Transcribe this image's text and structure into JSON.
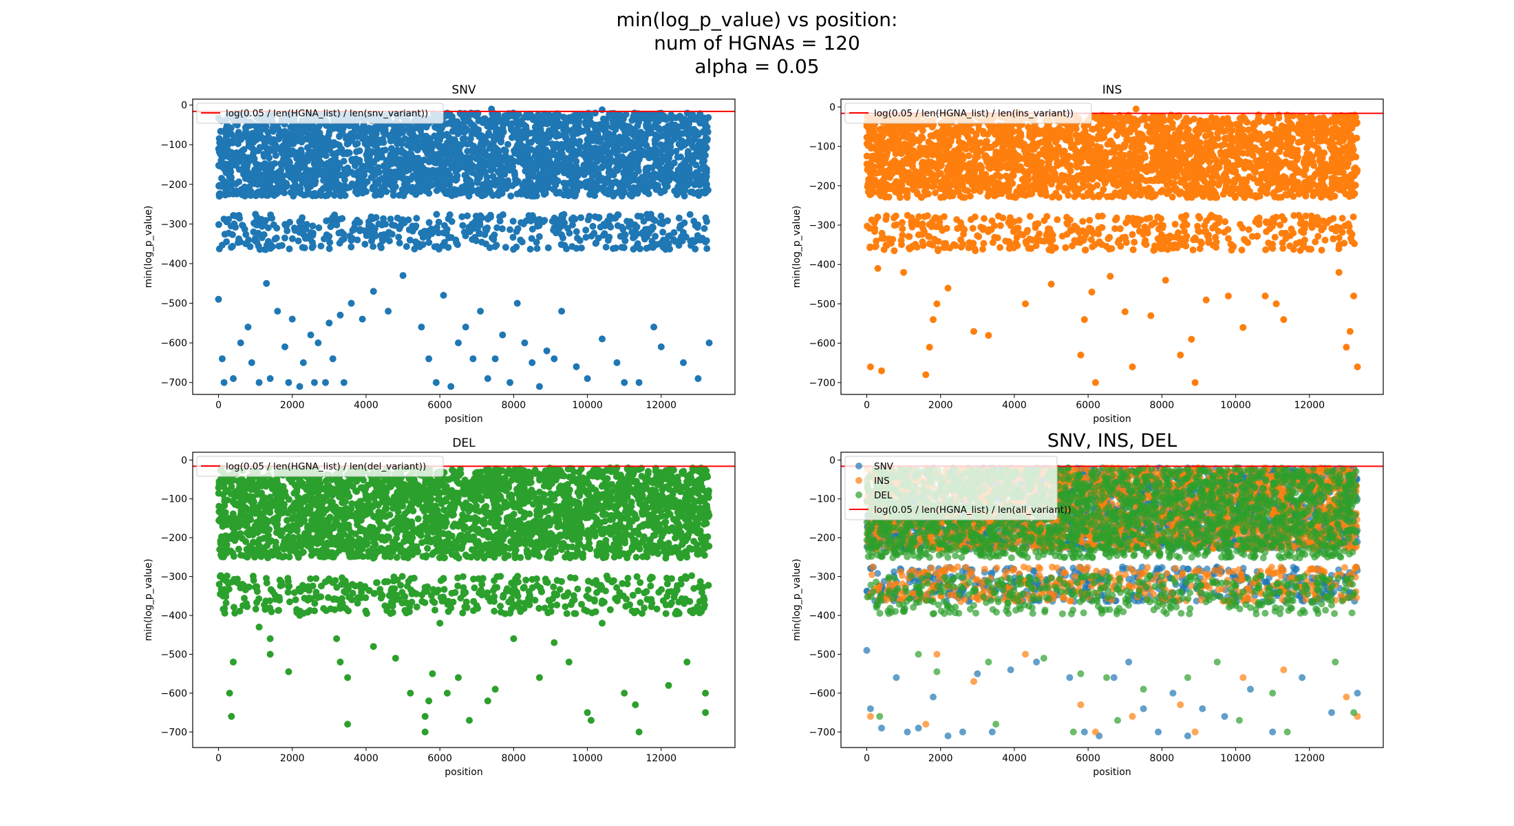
{
  "suptitle": [
    "min(log_p_value) vs position:",
    "num of HGNAs = 120",
    "alpha = 0.05"
  ],
  "colors": {
    "snv": "#1f77b4",
    "ins": "#ff7f0e",
    "del": "#2ca02c",
    "threshold": "#ff0000"
  },
  "chart_data": [
    {
      "type": "scatter",
      "title": "SNV",
      "xlabel": "position",
      "ylabel": "min(log_p_value)",
      "xlim": [
        -700,
        14000
      ],
      "ylim": [
        -730,
        15
      ],
      "xticks": [
        0,
        2000,
        4000,
        6000,
        8000,
        10000,
        12000
      ],
      "yticks": [
        0,
        -100,
        -200,
        -300,
        -400,
        -500,
        -600,
        -700
      ],
      "xticklabels": [
        "0",
        "2000",
        "4000",
        "6000",
        "8000",
        "10000",
        "12000"
      ],
      "yticklabels": [
        "0",
        "−100",
        "−200",
        "−300",
        "−400",
        "−500",
        "−600",
        "−700"
      ],
      "threshold": {
        "label": "log(0.05 / len(HGNA_list) / len(snv_variant))",
        "y": -16
      },
      "legend": "upper left",
      "series": [
        {
          "name": "",
          "color_key": "snv",
          "x_range": [
            0,
            13300
          ],
          "band": [
            -20,
            -300
          ],
          "outliers": [
            [
              0,
              -490
            ],
            [
              100,
              -640
            ],
            [
              150,
              -700
            ],
            [
              400,
              -690
            ],
            [
              600,
              -600
            ],
            [
              800,
              -560
            ],
            [
              900,
              -650
            ],
            [
              1100,
              -700
            ],
            [
              1300,
              -450
            ],
            [
              1400,
              -690
            ],
            [
              1600,
              -520
            ],
            [
              1800,
              -610
            ],
            [
              1900,
              -700
            ],
            [
              2000,
              -540
            ],
            [
              2200,
              -710
            ],
            [
              2300,
              -650
            ],
            [
              2500,
              -580
            ],
            [
              2600,
              -700
            ],
            [
              2700,
              -600
            ],
            [
              2900,
              -700
            ],
            [
              3000,
              -550
            ],
            [
              3100,
              -640
            ],
            [
              3300,
              -530
            ],
            [
              3400,
              -700
            ],
            [
              3600,
              -500
            ],
            [
              3900,
              -540
            ],
            [
              4200,
              -470
            ],
            [
              4600,
              -520
            ],
            [
              5000,
              -430
            ],
            [
              5500,
              -560
            ],
            [
              5700,
              -640
            ],
            [
              5900,
              -700
            ],
            [
              6100,
              -480
            ],
            [
              6300,
              -710
            ],
            [
              6500,
              -600
            ],
            [
              6700,
              -560
            ],
            [
              6900,
              -640
            ],
            [
              7100,
              -520
            ],
            [
              7300,
              -690
            ],
            [
              7500,
              -640
            ],
            [
              7700,
              -580
            ],
            [
              7900,
              -700
            ],
            [
              8100,
              -500
            ],
            [
              8300,
              -600
            ],
            [
              8500,
              -650
            ],
            [
              8700,
              -710
            ],
            [
              8900,
              -620
            ],
            [
              9100,
              -640
            ],
            [
              9300,
              -520
            ],
            [
              9700,
              -660
            ],
            [
              10000,
              -690
            ],
            [
              10400,
              -590
            ],
            [
              10800,
              -650
            ],
            [
              11000,
              -700
            ],
            [
              11400,
              -700
            ],
            [
              11800,
              -560
            ],
            [
              12000,
              -610
            ],
            [
              12600,
              -650
            ],
            [
              13000,
              -690
            ],
            [
              13300,
              -600
            ],
            [
              7400,
              -10
            ],
            [
              10400,
              -12
            ]
          ]
        }
      ]
    },
    {
      "type": "scatter",
      "title": "INS",
      "xlabel": "position",
      "ylabel": "min(log_p_value)",
      "xlim": [
        -700,
        14000
      ],
      "ylim": [
        -730,
        20
      ],
      "xticks": [
        0,
        2000,
        4000,
        6000,
        8000,
        10000,
        12000
      ],
      "yticks": [
        0,
        -100,
        -200,
        -300,
        -400,
        -500,
        -600,
        -700
      ],
      "xticklabels": [
        "0",
        "2000",
        "4000",
        "6000",
        "8000",
        "10000",
        "12000"
      ],
      "yticklabels": [
        "0",
        "−100",
        "−200",
        "−300",
        "−400",
        "−500",
        "−600",
        "−700"
      ],
      "threshold": {
        "label": "log(0.05 / len(HGNA_list) / len(ins_variant))",
        "y": -16
      },
      "legend": "upper left",
      "series": [
        {
          "name": "",
          "color_key": "ins",
          "x_range": [
            0,
            13300
          ],
          "band": [
            -20,
            -300
          ],
          "outliers": [
            [
              100,
              -660
            ],
            [
              400,
              -670
            ],
            [
              300,
              -410
            ],
            [
              1000,
              -420
            ],
            [
              1600,
              -680
            ],
            [
              1700,
              -610
            ],
            [
              1800,
              -540
            ],
            [
              1900,
              -500
            ],
            [
              2200,
              -460
            ],
            [
              2900,
              -570
            ],
            [
              3300,
              -580
            ],
            [
              4300,
              -500
            ],
            [
              5000,
              -450
            ],
            [
              5800,
              -630
            ],
            [
              5900,
              -540
            ],
            [
              6100,
              -470
            ],
            [
              6200,
              -700
            ],
            [
              6600,
              -430
            ],
            [
              7000,
              -520
            ],
            [
              7200,
              -660
            ],
            [
              7700,
              -530
            ],
            [
              8100,
              -440
            ],
            [
              8500,
              -630
            ],
            [
              8800,
              -590
            ],
            [
              8900,
              -700
            ],
            [
              9200,
              -490
            ],
            [
              9800,
              -480
            ],
            [
              10200,
              -560
            ],
            [
              10800,
              -480
            ],
            [
              11100,
              -500
            ],
            [
              11300,
              -540
            ],
            [
              12800,
              -420
            ],
            [
              13000,
              -610
            ],
            [
              13100,
              -570
            ],
            [
              13200,
              -480
            ],
            [
              13300,
              -660
            ],
            [
              7300,
              -5
            ],
            [
              4100,
              -14
            ]
          ]
        }
      ]
    },
    {
      "type": "scatter",
      "title": "DEL",
      "xlabel": "position",
      "ylabel": "min(log_p_value)",
      "xlim": [
        -700,
        14000
      ],
      "ylim": [
        -740,
        20
      ],
      "xticks": [
        0,
        2000,
        4000,
        6000,
        8000,
        10000,
        12000
      ],
      "yticks": [
        0,
        -100,
        -200,
        -300,
        -400,
        -500,
        -600,
        -700
      ],
      "xticklabels": [
        "0",
        "2000",
        "4000",
        "6000",
        "8000",
        "10000",
        "12000"
      ],
      "yticklabels": [
        "0",
        "−100",
        "−200",
        "−300",
        "−400",
        "−500",
        "−600",
        "−700"
      ],
      "threshold": {
        "label": "log(0.05 / len(HGNA_list) / len(del_variant))",
        "y": -16
      },
      "legend": "upper left",
      "series": [
        {
          "name": "",
          "color_key": "del",
          "x_range": [
            0,
            13300
          ],
          "band": [
            -20,
            -330
          ],
          "outliers": [
            [
              300,
              -600
            ],
            [
              350,
              -660
            ],
            [
              400,
              -520
            ],
            [
              1100,
              -430
            ],
            [
              1400,
              -460
            ],
            [
              1400,
              -500
            ],
            [
              1900,
              -545
            ],
            [
              2200,
              -400
            ],
            [
              3200,
              -460
            ],
            [
              3300,
              -520
            ],
            [
              3500,
              -680
            ],
            [
              3500,
              -560
            ],
            [
              4200,
              -480
            ],
            [
              4800,
              -510
            ],
            [
              5200,
              -600
            ],
            [
              5600,
              -700
            ],
            [
              5600,
              -660
            ],
            [
              5700,
              -620
            ],
            [
              5800,
              -550
            ],
            [
              6000,
              -420
            ],
            [
              6200,
              -600
            ],
            [
              6500,
              -560
            ],
            [
              6800,
              -670
            ],
            [
              7300,
              -620
            ],
            [
              7500,
              -590
            ],
            [
              8000,
              -460
            ],
            [
              8700,
              -560
            ],
            [
              9100,
              -470
            ],
            [
              9500,
              -520
            ],
            [
              10000,
              -650
            ],
            [
              10100,
              -670
            ],
            [
              10400,
              -420
            ],
            [
              11000,
              -600
            ],
            [
              11300,
              -630
            ],
            [
              11400,
              -700
            ],
            [
              12200,
              -580
            ],
            [
              12700,
              -520
            ],
            [
              13200,
              -650
            ],
            [
              13200,
              -600
            ]
          ]
        }
      ]
    },
    {
      "type": "scatter",
      "title": "SNV, INS, DEL",
      "xlabel": "position",
      "ylabel": "min(log_p_value)",
      "xlim": [
        -700,
        14000
      ],
      "ylim": [
        -740,
        20
      ],
      "xticks": [
        0,
        2000,
        4000,
        6000,
        8000,
        10000,
        12000
      ],
      "yticks": [
        0,
        -100,
        -200,
        -300,
        -400,
        -500,
        -600,
        -700
      ],
      "xticklabels": [
        "0",
        "2000",
        "4000",
        "6000",
        "8000",
        "10000",
        "12000"
      ],
      "yticklabels": [
        "0",
        "−100",
        "−200",
        "−300",
        "−400",
        "−500",
        "−600",
        "−700"
      ],
      "threshold": {
        "label": "log(0.05 / len(HGNA_list) / len(all_variant))",
        "y": -16
      },
      "legend": "upper left",
      "series": [
        {
          "name": "SNV",
          "color_key": "snv",
          "x_range": [
            0,
            13300
          ],
          "band": [
            -20,
            -300
          ],
          "outliers": [
            [
              0,
              -490
            ],
            [
              100,
              -640
            ],
            [
              400,
              -690
            ],
            [
              800,
              -560
            ],
            [
              1100,
              -700
            ],
            [
              1400,
              -690
            ],
            [
              1800,
              -610
            ],
            [
              2200,
              -710
            ],
            [
              2600,
              -700
            ],
            [
              3000,
              -550
            ],
            [
              3400,
              -700
            ],
            [
              3900,
              -540
            ],
            [
              4600,
              -520
            ],
            [
              5500,
              -560
            ],
            [
              5900,
              -700
            ],
            [
              6300,
              -710
            ],
            [
              6700,
              -560
            ],
            [
              7100,
              -520
            ],
            [
              7500,
              -640
            ],
            [
              7900,
              -700
            ],
            [
              8300,
              -600
            ],
            [
              8700,
              -710
            ],
            [
              9100,
              -640
            ],
            [
              9700,
              -660
            ],
            [
              10400,
              -590
            ],
            [
              11000,
              -700
            ],
            [
              11800,
              -560
            ],
            [
              12600,
              -650
            ],
            [
              13300,
              -600
            ]
          ]
        },
        {
          "name": "INS",
          "color_key": "ins",
          "x_range": [
            0,
            13300
          ],
          "band": [
            -20,
            -300
          ],
          "outliers": [
            [
              100,
              -660
            ],
            [
              1600,
              -680
            ],
            [
              1900,
              -500
            ],
            [
              2900,
              -570
            ],
            [
              4300,
              -500
            ],
            [
              5800,
              -630
            ],
            [
              6200,
              -700
            ],
            [
              7200,
              -660
            ],
            [
              8500,
              -630
            ],
            [
              8900,
              -700
            ],
            [
              10200,
              -560
            ],
            [
              11300,
              -540
            ],
            [
              13000,
              -610
            ],
            [
              13300,
              -660
            ]
          ]
        },
        {
          "name": "DEL",
          "color_key": "del",
          "x_range": [
            0,
            13300
          ],
          "band": [
            -20,
            -330
          ],
          "outliers": [
            [
              350,
              -660
            ],
            [
              1400,
              -500
            ],
            [
              1900,
              -545
            ],
            [
              3300,
              -520
            ],
            [
              3500,
              -680
            ],
            [
              4800,
              -510
            ],
            [
              5600,
              -700
            ],
            [
              5800,
              -550
            ],
            [
              6500,
              -560
            ],
            [
              6800,
              -670
            ],
            [
              7500,
              -590
            ],
            [
              8700,
              -560
            ],
            [
              9500,
              -520
            ],
            [
              10100,
              -670
            ],
            [
              11000,
              -600
            ],
            [
              11400,
              -700
            ],
            [
              12700,
              -520
            ],
            [
              13200,
              -650
            ]
          ]
        }
      ]
    }
  ]
}
